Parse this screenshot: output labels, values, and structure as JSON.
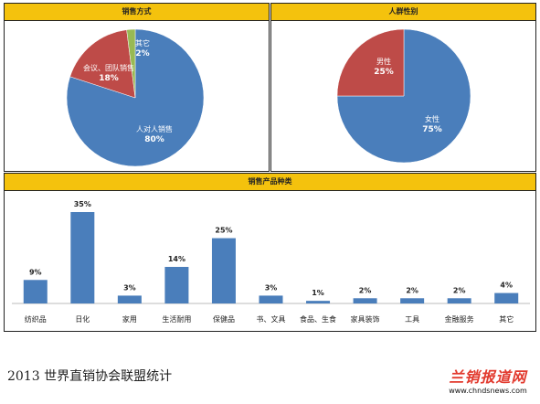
{
  "chart_data": [
    {
      "type": "pie",
      "title": "销售方式",
      "slices": [
        {
          "label": "人对人销售",
          "pct": "80%",
          "value": 80,
          "color": "#4a7ebb"
        },
        {
          "label": "会议、团队销售",
          "pct": "18%",
          "value": 18,
          "color": "#be4b48"
        },
        {
          "label": "其它",
          "pct": "2%",
          "value": 2,
          "color": "#98b954"
        }
      ]
    },
    {
      "type": "pie",
      "title": "人群性别",
      "slices": [
        {
          "label": "女性",
          "pct": "75%",
          "value": 75,
          "color": "#4a7ebb"
        },
        {
          "label": "男性",
          "pct": "25%",
          "value": 25,
          "color": "#be4b48"
        }
      ]
    },
    {
      "type": "bar",
      "title": "销售产品种类",
      "categories": [
        "纺织品",
        "日化",
        "家用",
        "生活耐用",
        "保健品",
        "书、文具",
        "食品、生食",
        "家具装饰",
        "工具",
        "金融服务",
        "其它"
      ],
      "values": [
        9,
        35,
        3,
        14,
        25,
        3,
        1,
        2,
        2,
        2,
        4
      ],
      "data_labels": [
        "9%",
        "35%",
        "3%",
        "14%",
        "25%",
        "3%",
        "1%",
        "2%",
        "2%",
        "2%",
        "4%"
      ],
      "color": "#4a7ebb",
      "ylim": [
        0,
        35
      ]
    }
  ],
  "footer": {
    "text": "2013 世界直销协会联盟统计"
  },
  "logo": {
    "text": "兰销报道网",
    "url": "www.chndsnews.com",
    "color": "#e23a2e"
  }
}
